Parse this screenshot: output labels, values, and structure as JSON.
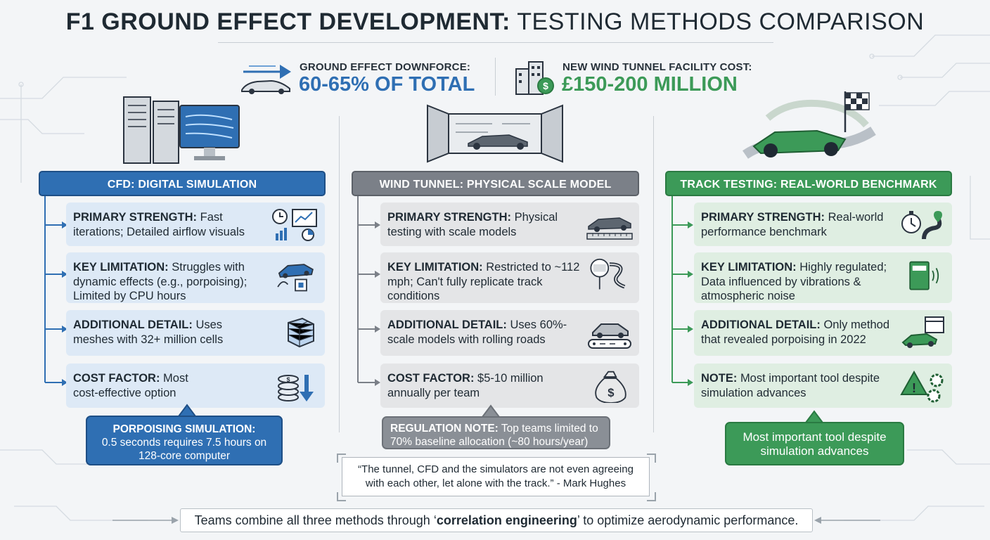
{
  "title": {
    "bold": "F1 GROUND EFFECT DEVELOPMENT:",
    "light": "TESTING METHODS COMPARISON"
  },
  "stats": [
    {
      "label": "GROUND EFFECT DOWNFORCE:",
      "value": "60-65% OF TOTAL",
      "color": "#2f6fb3"
    },
    {
      "label": "NEW WIND TUNNEL FACILITY COST:",
      "value": "£150-200 MILLION",
      "color": "#3c9a58"
    }
  ],
  "columns": [
    {
      "header": "CFD: DIGITAL SIMULATION",
      "cards": [
        {
          "label": "PRIMARY STRENGTH:",
          "text": "Fast iterations; Detailed airflow visuals",
          "icon": "clock-chart-icon"
        },
        {
          "label": "KEY LIMITATION:",
          "text": "Struggles with dynamic effects (e.g., porpoising); Limited by CPU hours",
          "icon": "car-cpu-icon"
        },
        {
          "label": "ADDITIONAL DETAIL:",
          "text": "Uses meshes with 32+ million cells",
          "icon": "mesh-cube-icon"
        },
        {
          "label": "COST FACTOR:",
          "text": "Most cost-effective option",
          "icon": "coins-down-icon"
        }
      ],
      "callout": {
        "label": "PORPOISING SIMULATION:",
        "text": "0.5 seconds requires 7.5 hours on 128-core computer"
      }
    },
    {
      "header": "WIND TUNNEL: PHYSICAL SCALE MODEL",
      "cards": [
        {
          "label": "PRIMARY STRENGTH:",
          "text": "Physical testing with scale models",
          "icon": "scale-model-icon"
        },
        {
          "label": "KEY LIMITATION:",
          "text": "Restricted to ~112 mph; Can't fully replicate track conditions",
          "icon": "speed-limit-icon"
        },
        {
          "label": "ADDITIONAL DETAIL:",
          "text": "Uses 60%-scale models with rolling roads",
          "icon": "rolling-road-icon"
        },
        {
          "label": "COST FACTOR:",
          "text": "$5-10 million annually per team",
          "icon": "money-bag-icon"
        }
      ],
      "callout": {
        "label": "REGULATION NOTE:",
        "text": "Top teams limited to 70% baseline allocation (~80 hours/year)"
      }
    },
    {
      "header": "TRACK TESTING: REAL-WORLD BENCHMARK",
      "cards": [
        {
          "label": "PRIMARY STRENGTH:",
          "text": "Real-world performance benchmark",
          "icon": "stopwatch-track-icon"
        },
        {
          "label": "KEY LIMITATION:",
          "text": "Highly regulated; Data influenced by vibrations & atmospheric noise",
          "icon": "rulebook-icon"
        },
        {
          "label": "ADDITIONAL DETAIL:",
          "text": "Only method that revealed porpoising in 2022",
          "icon": "car-calendar-icon"
        },
        {
          "label": "NOTE:",
          "text": "Most important tool despite simulation advances",
          "icon": "warning-gear-icon"
        }
      ],
      "callout": {
        "label": "",
        "text": "Most important tool despite simulation advances"
      }
    }
  ],
  "quote": "“The tunnel, CFD and the simulators are not even agreeing with each other, let alone with the track.” - Mark Hughes",
  "footer": {
    "pre": "Teams combine all three methods through ‘",
    "em": "correlation engineering",
    "post": "’ to optimize aerodynamic performance."
  }
}
